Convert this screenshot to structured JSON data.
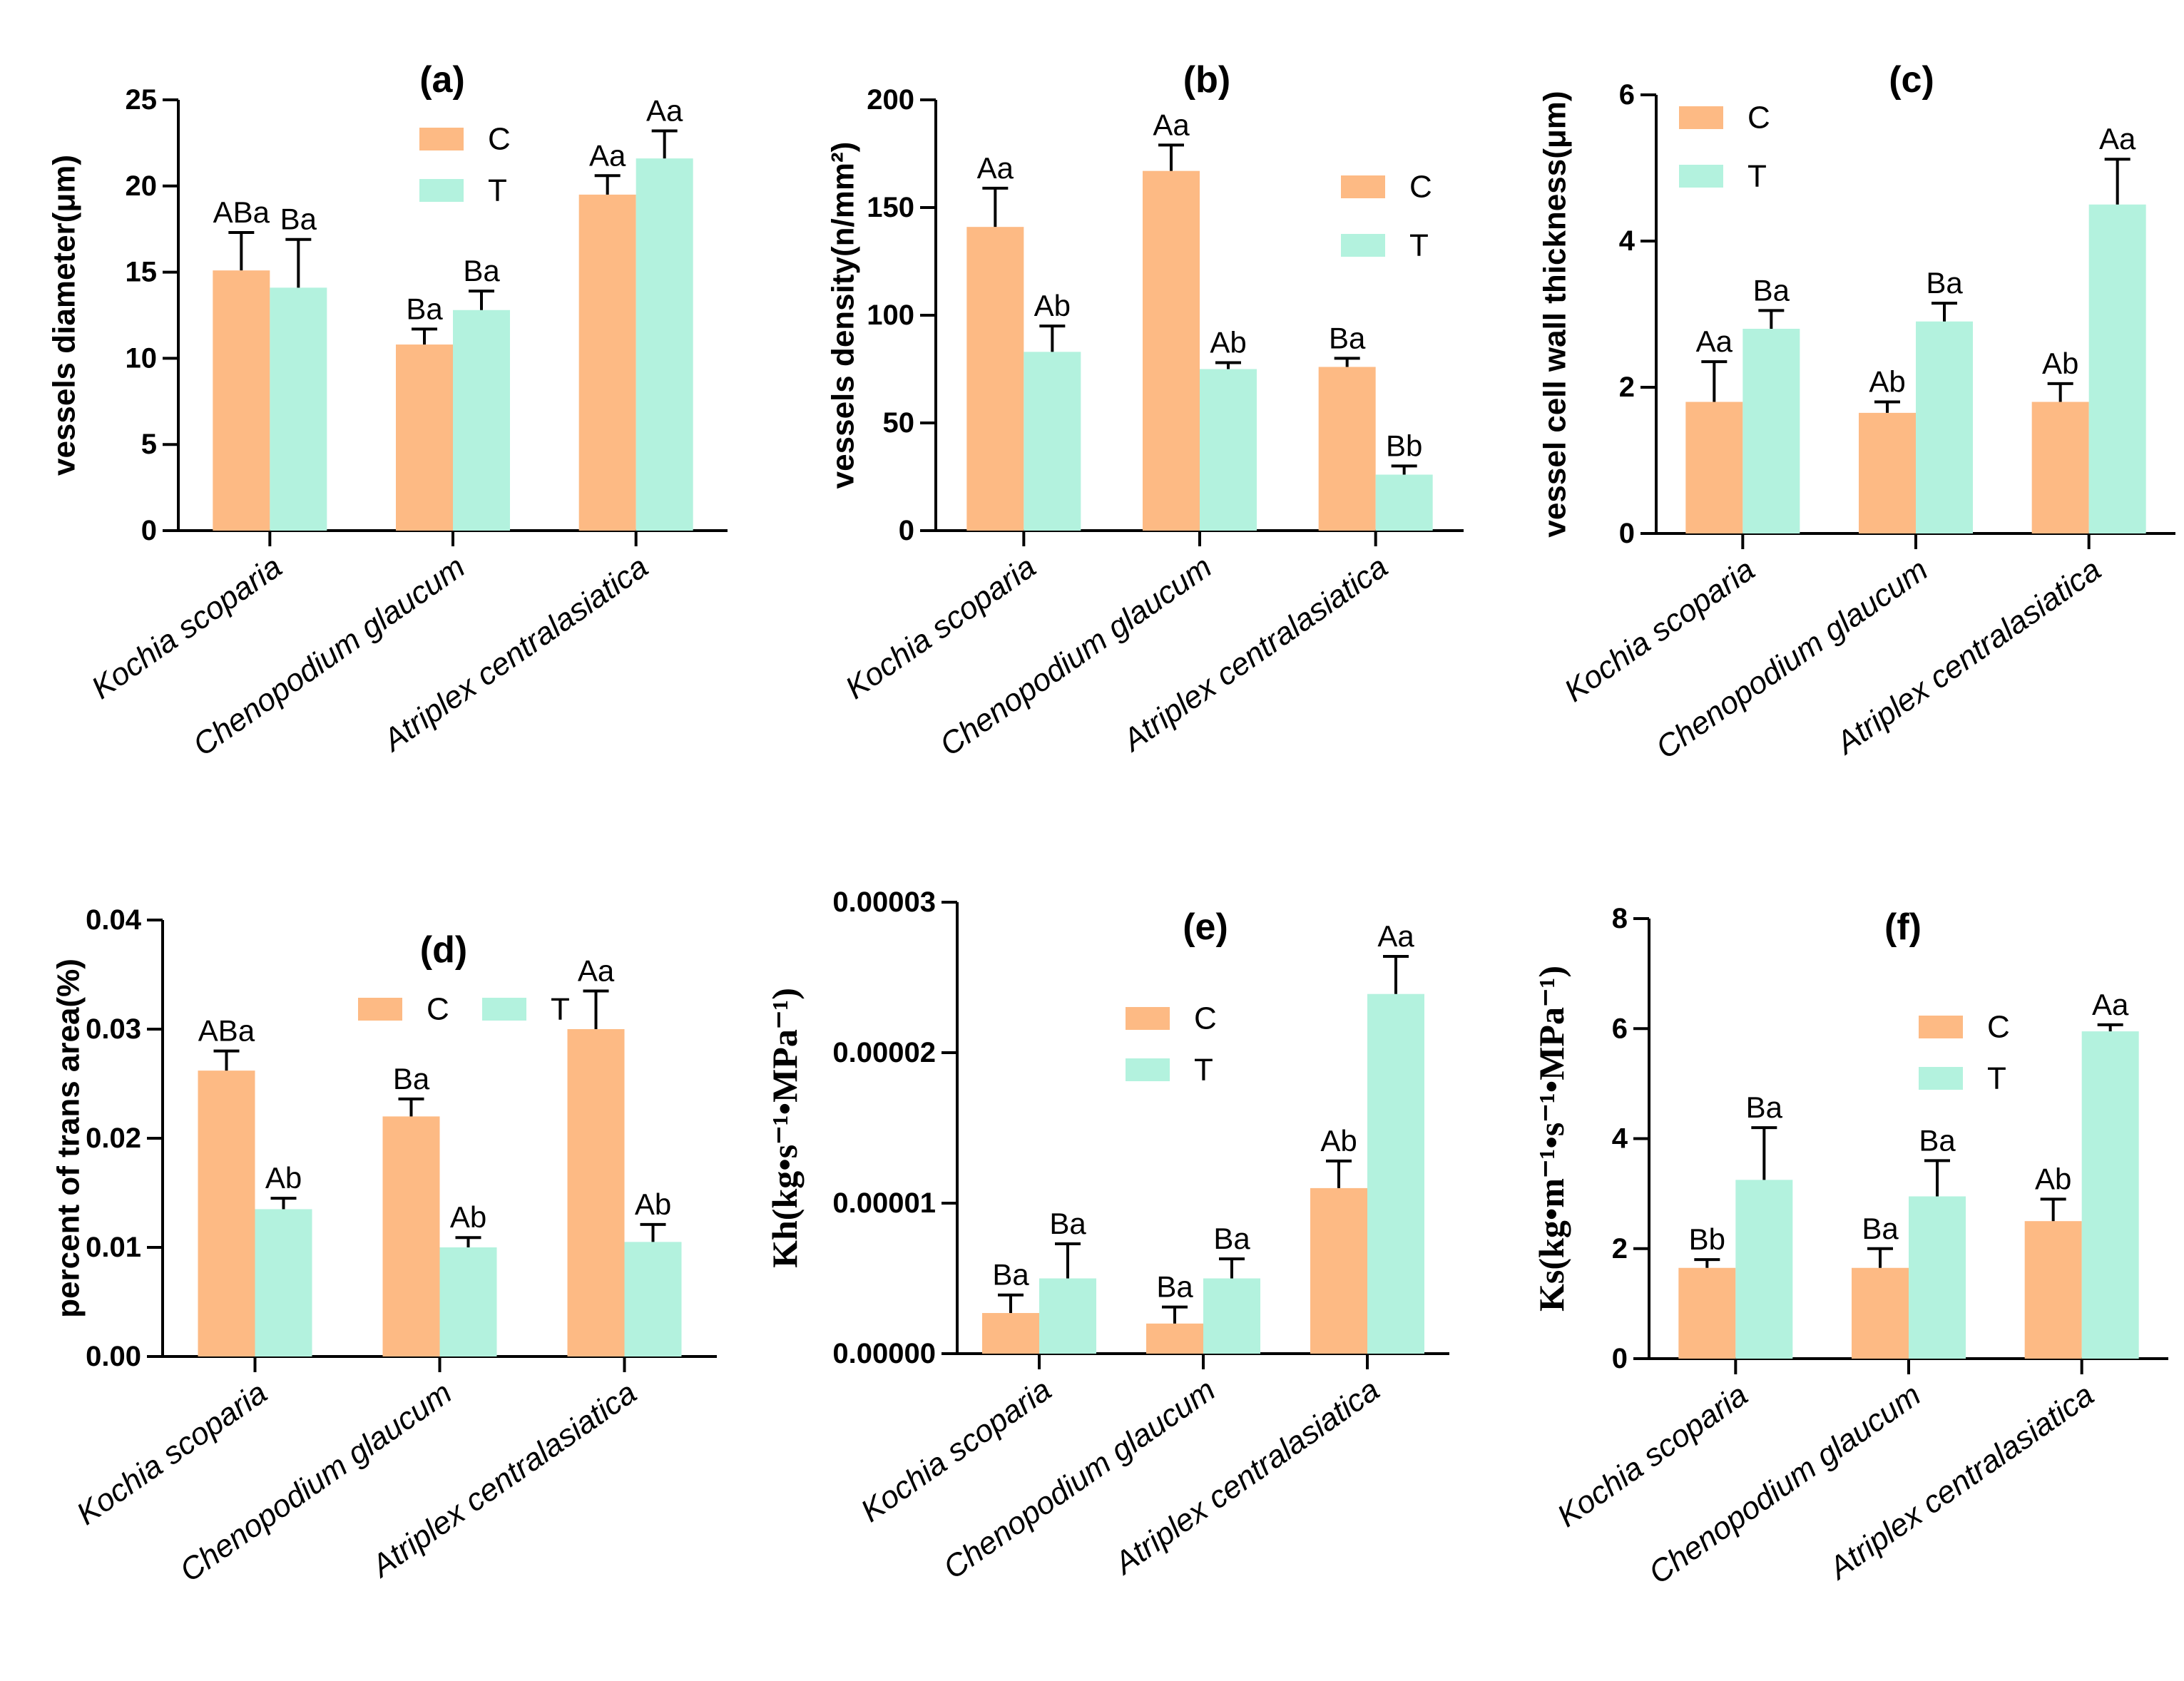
{
  "colors": {
    "C": "#fdba84",
    "T": "#b3f2de",
    "axis": "#000000"
  },
  "categories": [
    "Kochia scoparia",
    "Chenopodium glaucum",
    "Atriplex centralasiatica"
  ],
  "chart_data": [
    {
      "id": "a",
      "type": "bar",
      "title": "(a)",
      "ylabel": "vessels diameter(μm)",
      "ylim": [
        0,
        25
      ],
      "yticks": [
        "0",
        "5",
        "10",
        "15",
        "20",
        "25"
      ],
      "legend": [
        "C",
        "T"
      ],
      "series": [
        {
          "name": "C",
          "values": [
            15.1,
            10.8,
            19.5
          ],
          "errors": [
            2.2,
            0.9,
            1.1
          ],
          "labels": [
            "ABa",
            "Ba",
            "Aa"
          ]
        },
        {
          "name": "T",
          "values": [
            14.1,
            12.8,
            21.6
          ],
          "errors": [
            2.8,
            1.1,
            1.6
          ],
          "labels": [
            "Ba",
            "Ba",
            "Aa"
          ]
        }
      ]
    },
    {
      "id": "b",
      "type": "bar",
      "title": "(b)",
      "ylabel": "vessels density(n/mm²)",
      "ylim": [
        0,
        200
      ],
      "yticks": [
        "0",
        "50",
        "100",
        "150",
        "200"
      ],
      "legend": [
        "C",
        "T"
      ],
      "series": [
        {
          "name": "C",
          "values": [
            141,
            167,
            76
          ],
          "errors": [
            18,
            12,
            4
          ],
          "labels": [
            "Aa",
            "Aa",
            "Ba"
          ]
        },
        {
          "name": "T",
          "values": [
            83,
            75,
            26
          ],
          "errors": [
            12,
            3,
            4
          ],
          "labels": [
            "Ab",
            "Ab",
            "Bb"
          ]
        }
      ]
    },
    {
      "id": "c",
      "type": "bar",
      "title": "(c)",
      "ylabel": "vessel cell wall thickness(μm)",
      "ylim": [
        0,
        6
      ],
      "yticks": [
        "0",
        "2",
        "4",
        "6"
      ],
      "legend": [
        "C",
        "T"
      ],
      "series": [
        {
          "name": "C",
          "values": [
            1.8,
            1.65,
            1.8
          ],
          "errors": [
            0.55,
            0.15,
            0.25
          ],
          "labels": [
            "Aa",
            "Ab",
            "Ab"
          ]
        },
        {
          "name": "T",
          "values": [
            2.8,
            2.9,
            4.5
          ],
          "errors": [
            0.25,
            0.25,
            0.62
          ],
          "labels": [
            "Ba",
            "Ba",
            "Aa"
          ]
        }
      ]
    },
    {
      "id": "d",
      "type": "bar",
      "title": "(d)",
      "ylabel": "percent of trans area(%)",
      "ylim": [
        0,
        0.04
      ],
      "yticks": [
        "0.00",
        "0.01",
        "0.02",
        "0.03",
        "0.04"
      ],
      "legend": [
        "C",
        "T"
      ],
      "series": [
        {
          "name": "C",
          "values": [
            0.0262,
            0.022,
            0.03
          ],
          "errors": [
            0.0018,
            0.0016,
            0.0035
          ],
          "labels": [
            "ABa",
            "Ba",
            "Aa"
          ]
        },
        {
          "name": "T",
          "values": [
            0.0135,
            0.01,
            0.0105
          ],
          "errors": [
            0.001,
            0.0009,
            0.0016
          ],
          "labels": [
            "Ab",
            "Ab",
            "Ab"
          ]
        }
      ]
    },
    {
      "id": "e",
      "type": "bar",
      "title": "(e)",
      "ylabel": "Kh(kg•s⁻¹•MPa⁻¹)",
      "ylim": [
        0,
        3e-05
      ],
      "yticks": [
        "0.00000",
        "0.00001",
        "0.00002",
        "0.00003"
      ],
      "legend": [
        "C",
        "T"
      ],
      "series": [
        {
          "name": "C",
          "values": [
            2.7e-06,
            2e-06,
            1.1e-05
          ],
          "errors": [
            1.2e-06,
            1.1e-06,
            1.8e-06
          ],
          "labels": [
            "Ba",
            "Ba",
            "Ab"
          ]
        },
        {
          "name": "T",
          "values": [
            5e-06,
            5e-06,
            2.39e-05
          ],
          "errors": [
            2.3e-06,
            1.3e-06,
            2.5e-06
          ],
          "labels": [
            "Ba",
            "Ba",
            "Aa"
          ]
        }
      ]
    },
    {
      "id": "f",
      "type": "bar",
      "title": "(f)",
      "ylabel": "Ks(kg•m⁻¹•s⁻¹•MPa⁻¹)",
      "ylim": [
        0,
        8
      ],
      "yticks": [
        "0",
        "2",
        "4",
        "6",
        "8"
      ],
      "legend": [
        "C",
        "T"
      ],
      "series": [
        {
          "name": "C",
          "values": [
            1.65,
            1.65,
            2.5
          ],
          "errors": [
            0.15,
            0.35,
            0.4
          ],
          "labels": [
            "Bb",
            "Ba",
            "Ab"
          ]
        },
        {
          "name": "T",
          "values": [
            3.25,
            2.95,
            5.95
          ],
          "errors": [
            0.95,
            0.65,
            0.12
          ],
          "labels": [
            "Ba",
            "Ba",
            "Aa"
          ]
        }
      ]
    }
  ]
}
